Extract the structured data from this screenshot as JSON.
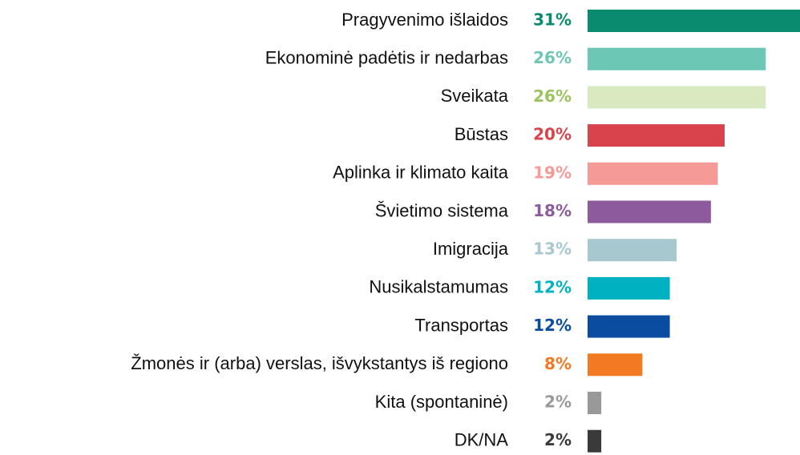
{
  "chart_data": {
    "type": "barh",
    "categories": [
      "Pragyvenimo išlaidos",
      "Ekonominė padėtis ir nedarbas",
      "Sveikata",
      "Būstas",
      "Aplinka ir klimato kaita",
      "Švietimo sistema",
      "Imigracija",
      "Nusikalstamumas",
      "Transportas",
      "Žmonės ir (arba) verslas, išvykstantys iš regiono",
      "Kita (spontaninė)",
      "DK/NA"
    ],
    "values": [
      31,
      26,
      26,
      20,
      19,
      18,
      13,
      12,
      12,
      8,
      2,
      2
    ],
    "value_labels": [
      "31%",
      "26%",
      "26%",
      "20%",
      "19%",
      "18%",
      "13%",
      "12%",
      "12%",
      "8%",
      "2%",
      "2%"
    ],
    "colors": [
      "#0a8a6e",
      "#6cc7b4",
      "#d9eac0",
      "#d9434b",
      "#f59a96",
      "#8e5a9e",
      "#a8c8d0",
      "#00b1c2",
      "#0a4da0",
      "#f27a22",
      "#999999",
      "#3a3a3a"
    ],
    "label_colors": [
      "#0a8a6e",
      "#6cc7b4",
      "#9cc45e",
      "#d9434b",
      "#f59a96",
      "#8e5a9e",
      "#a8c8d0",
      "#00b1c2",
      "#0a4da0",
      "#f27a22",
      "#999999",
      "#3a3a3a"
    ]
  }
}
